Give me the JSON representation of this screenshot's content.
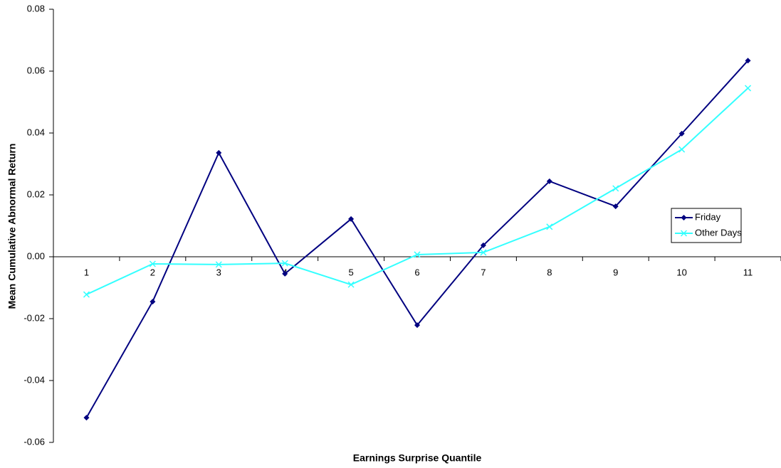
{
  "chart_data": {
    "type": "line",
    "x_label": "Earnings Surprise Quantile",
    "y_label": "Mean Cumulative Abnormal Return",
    "categories": [
      "1",
      "2",
      "3",
      "4",
      "5",
      "6",
      "7",
      "8",
      "9",
      "10",
      "11"
    ],
    "series": [
      {
        "name": "Friday",
        "color": "#000080",
        "marker": "diamond",
        "values": [
          -0.052,
          -0.0145,
          0.0336,
          -0.0055,
          0.0122,
          -0.0221,
          0.0037,
          0.0244,
          0.0163,
          0.0398,
          0.0634
        ]
      },
      {
        "name": "Other Days",
        "color": "#33ffff",
        "marker": "x",
        "values": [
          -0.0122,
          -0.0023,
          -0.0025,
          -0.0021,
          -0.009,
          0.0007,
          0.0014,
          0.0097,
          0.0221,
          0.0347,
          0.0545
        ]
      }
    ],
    "ylim": [
      -0.06,
      0.08
    ],
    "yticks": [
      -0.06,
      -0.04,
      -0.02,
      {
        "value": 0,
        "label": "0.00"
      },
      0.02,
      0.04,
      0.06,
      0.08
    ],
    "legend": "right"
  }
}
